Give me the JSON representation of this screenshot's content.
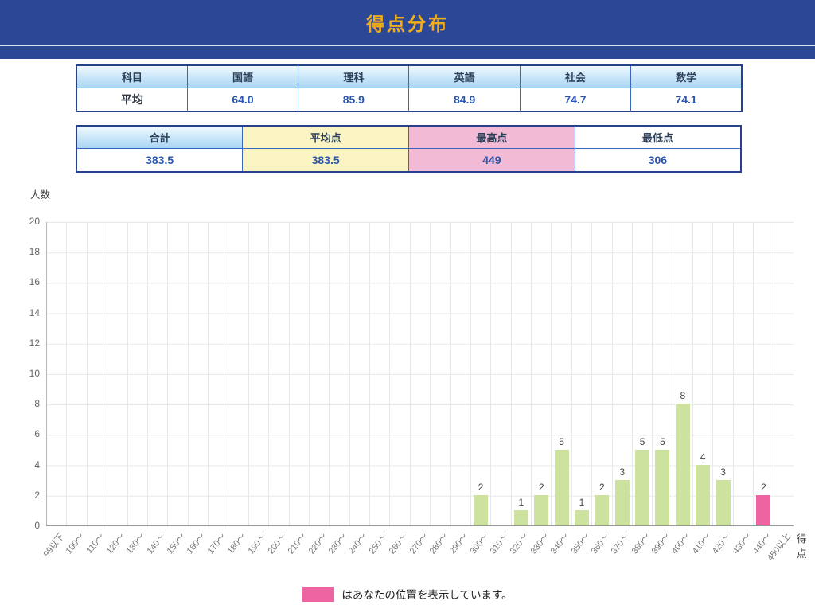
{
  "header": {
    "title": "得点分布"
  },
  "subject_table": {
    "corner_header": "科目",
    "subject_headers": [
      "国語",
      "理科",
      "英語",
      "社会",
      "数学"
    ],
    "row_label": "平均",
    "averages": [
      "64.0",
      "85.9",
      "84.9",
      "74.7",
      "74.1"
    ]
  },
  "summary_table": {
    "columns": [
      {
        "label": "合計",
        "value": "383.5",
        "header_fill": "blue",
        "value_fill": "none"
      },
      {
        "label": "平均点",
        "value": "383.5",
        "header_fill": "yellow",
        "value_fill": "yellow"
      },
      {
        "label": "最高点",
        "value": "449",
        "header_fill": "pink",
        "value_fill": "pink"
      },
      {
        "label": "最低点",
        "value": "306",
        "header_fill": "none",
        "value_fill": "none"
      }
    ]
  },
  "chart_data": {
    "type": "bar",
    "title": "",
    "ylabel": "人数",
    "xlabel": "得点",
    "ylim": [
      0,
      20
    ],
    "ytick_step": 2,
    "grid": true,
    "legend_position": "bottom-center",
    "categories": [
      "99以下",
      "100〜",
      "110〜",
      "120〜",
      "130〜",
      "140〜",
      "150〜",
      "160〜",
      "170〜",
      "180〜",
      "190〜",
      "200〜",
      "210〜",
      "220〜",
      "230〜",
      "240〜",
      "250〜",
      "260〜",
      "270〜",
      "280〜",
      "290〜",
      "300〜",
      "310〜",
      "320〜",
      "330〜",
      "340〜",
      "350〜",
      "360〜",
      "370〜",
      "380〜",
      "390〜",
      "400〜",
      "410〜",
      "420〜",
      "430〜",
      "440〜",
      "450以上"
    ],
    "values": [
      0,
      0,
      0,
      0,
      0,
      0,
      0,
      0,
      0,
      0,
      0,
      0,
      0,
      0,
      0,
      0,
      0,
      0,
      0,
      0,
      0,
      2,
      0,
      1,
      2,
      5,
      1,
      2,
      3,
      5,
      5,
      8,
      4,
      3,
      0,
      2,
      0
    ],
    "highlight_index": 35,
    "bar_color": "#cde29e",
    "highlight_color": "#ee64a1"
  },
  "legend": {
    "text": "はあなたの位置を表示しています。"
  },
  "colors": {
    "navy": "#2b4796",
    "gold": "#f3ad1b",
    "border_outer": "#27418b",
    "border_inner": "#3a66c0",
    "yellow": "#faf4c3",
    "pinkfill": "#f2bad4",
    "value_blue": "#2a55ad",
    "bargreen": "#cde29e",
    "barpink": "#ee64a1"
  }
}
